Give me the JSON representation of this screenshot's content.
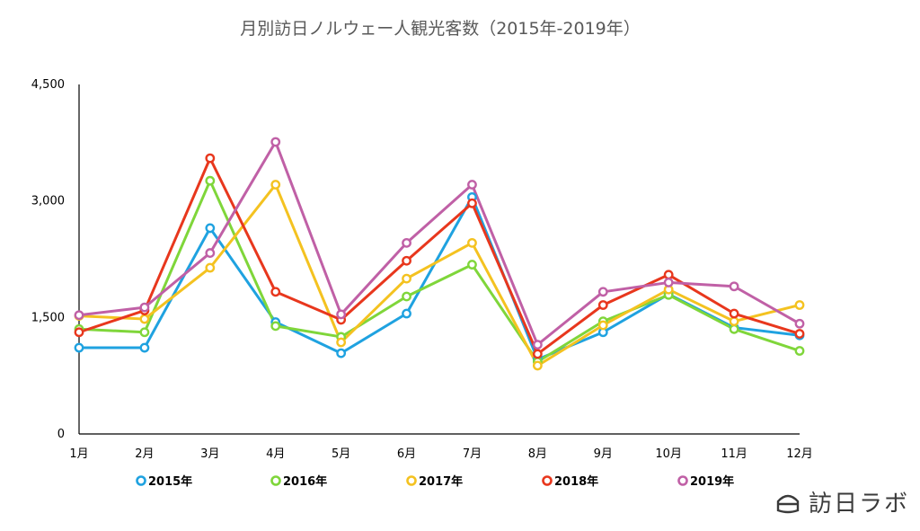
{
  "chart_data": {
    "type": "line",
    "title": "月別訪日ノルウェー人観光客数（2015年-2019年）",
    "categories": [
      "1月",
      "2月",
      "3月",
      "4月",
      "5月",
      "6月",
      "7月",
      "8月",
      "9月",
      "10月",
      "11月",
      "12月"
    ],
    "y_ticks": [
      "0",
      "1,500",
      "3,000",
      "4,500"
    ],
    "ylim": [
      0,
      4500
    ],
    "grid": false,
    "legend_position": "bottom",
    "series": [
      {
        "name": "2015年",
        "color": "#1fa2e0",
        "values": [
          1110,
          1110,
          2650,
          1440,
          1040,
          1550,
          3050,
          960,
          1310,
          1800,
          1370,
          1270
        ]
      },
      {
        "name": "2016年",
        "color": "#7fd63a",
        "values": [
          1350,
          1310,
          3260,
          1390,
          1250,
          1770,
          2180,
          930,
          1450,
          1790,
          1350,
          1070
        ]
      },
      {
        "name": "2017年",
        "color": "#f4c220",
        "values": [
          1520,
          1480,
          2140,
          3210,
          1180,
          2000,
          2460,
          880,
          1400,
          1860,
          1450,
          1660
        ]
      },
      {
        "name": "2018年",
        "color": "#e8371d",
        "values": [
          1310,
          1590,
          3550,
          1830,
          1470,
          2230,
          2970,
          1030,
          1660,
          2050,
          1550,
          1290
        ]
      },
      {
        "name": "2019年",
        "color": "#c060a6",
        "values": [
          1530,
          1630,
          2330,
          3760,
          1540,
          2460,
          3210,
          1150,
          1830,
          1950,
          1900,
          1420
        ]
      }
    ]
  },
  "brand": {
    "text": "訪日ラボ",
    "icon": "logo-icon"
  }
}
